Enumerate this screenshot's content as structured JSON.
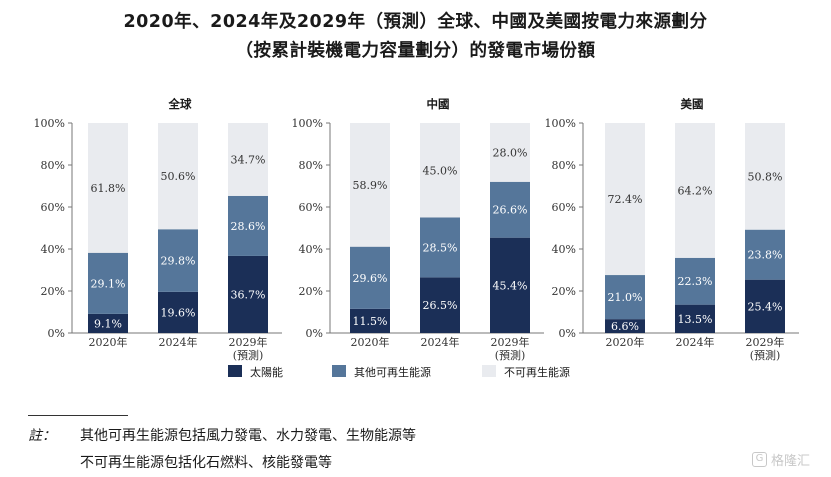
{
  "title_line1": "2020年、2024年及2029年（預測）全球、中國及美國按電力來源劃分",
  "title_line2": "（按累計裝機電力容量劃分）的發電市場份額",
  "chart_data": [
    {
      "type": "bar",
      "stacked": true,
      "title": "全球",
      "categories": [
        "2020年",
        "2024年",
        "2029年\n(預測)"
      ],
      "ylim": [
        0,
        100
      ],
      "yticks": [
        "0%",
        "20%",
        "40%",
        "60%",
        "80%",
        "100%"
      ],
      "series": [
        {
          "name": "太陽能",
          "values": [
            9.1,
            19.6,
            36.7
          ],
          "labels": [
            "9.1%",
            "19.6%",
            "36.7%"
          ],
          "color": "#1b2f57"
        },
        {
          "name": "其他可再生能源",
          "values": [
            29.1,
            29.8,
            28.6
          ],
          "labels": [
            "29.1%",
            "29.8%",
            "28.6%"
          ],
          "color": "#55769a"
        },
        {
          "name": "不可再生能源",
          "values": [
            61.8,
            50.6,
            34.7
          ],
          "labels": [
            "61.8%",
            "50.6%",
            "34.7%"
          ],
          "color": "#e9ebef"
        }
      ]
    },
    {
      "type": "bar",
      "stacked": true,
      "title": "中國",
      "categories": [
        "2020年",
        "2024年",
        "2029年\n(預測)"
      ],
      "ylim": [
        0,
        100
      ],
      "yticks": [
        "0%",
        "20%",
        "40%",
        "60%",
        "80%",
        "100%"
      ],
      "series": [
        {
          "name": "太陽能",
          "values": [
            11.5,
            26.5,
            45.4
          ],
          "labels": [
            "11.5%",
            "26.5%",
            "45.4%"
          ],
          "color": "#1b2f57"
        },
        {
          "name": "其他可再生能源",
          "values": [
            29.6,
            28.5,
            26.6
          ],
          "labels": [
            "29.6%",
            "28.5%",
            "26.6%"
          ],
          "color": "#55769a"
        },
        {
          "name": "不可再生能源",
          "values": [
            58.9,
            45.0,
            28.0
          ],
          "labels": [
            "58.9%",
            "45.0%",
            "28.0%"
          ],
          "color": "#e9ebef"
        }
      ]
    },
    {
      "type": "bar",
      "stacked": true,
      "title": "美國",
      "categories": [
        "2020年",
        "2024年",
        "2029年\n(預測)"
      ],
      "ylim": [
        0,
        100
      ],
      "yticks": [
        "0%",
        "20%",
        "40%",
        "60%",
        "80%",
        "100%"
      ],
      "series": [
        {
          "name": "太陽能",
          "values": [
            6.6,
            13.5,
            25.4
          ],
          "labels": [
            "6.6%",
            "13.5%",
            "25.4%"
          ],
          "color": "#1b2f57"
        },
        {
          "name": "其他可再生能源",
          "values": [
            21.0,
            22.3,
            23.8
          ],
          "labels": [
            "21.0%",
            "22.3%",
            "23.8%"
          ],
          "color": "#55769a"
        },
        {
          "name": "不可再生能源",
          "values": [
            72.4,
            64.2,
            50.8
          ],
          "labels": [
            "72.4%",
            "64.2%",
            "50.8%"
          ],
          "color": "#e9ebef"
        }
      ]
    }
  ],
  "legend": [
    {
      "name": "太陽能",
      "color": "#1b2f57"
    },
    {
      "name": "其他可再生能源",
      "color": "#55769a"
    },
    {
      "name": "不可再生能源",
      "color": "#e9ebef"
    }
  ],
  "note_label": "註：",
  "note_line1": "其他可再生能源包括風力發電、水力發電、生物能源等",
  "note_line2": "不可再生能源包括化石燃料、核能發電等",
  "watermark": "格隆汇",
  "watermark_icon": "G"
}
